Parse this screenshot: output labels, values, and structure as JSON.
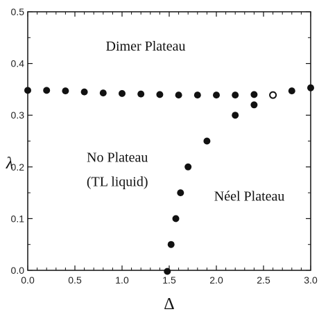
{
  "chart_data": {
    "type": "scatter",
    "xlabel": "Δ",
    "ylabel": "λ",
    "xlim": [
      0.0,
      3.0
    ],
    "ylim": [
      0.0,
      0.5
    ],
    "x_ticks": [
      "0.0",
      "0.5",
      "1.0",
      "1.5",
      "2.0",
      "2.5",
      "3.0"
    ],
    "y_ticks": [
      "0.0",
      "0.1",
      "0.2",
      "0.3",
      "0.4",
      "0.5"
    ],
    "grid": false,
    "annotations": [
      {
        "text": "Dimer Plateau",
        "x": 1.25,
        "y": 0.425
      },
      {
        "text": "No Plateau",
        "x": 0.95,
        "y": 0.21
      },
      {
        "text": "(TL liquid)",
        "x": 0.95,
        "y": 0.163
      },
      {
        "text": "Néel Plateau",
        "x": 2.35,
        "y": 0.135
      }
    ],
    "series": [
      {
        "marker": "filled",
        "color": "#111111",
        "points": [
          [
            0.0,
            0.348
          ],
          [
            0.2,
            0.348
          ],
          [
            0.4,
            0.347
          ],
          [
            0.6,
            0.345
          ],
          [
            0.8,
            0.343
          ],
          [
            1.0,
            0.342
          ],
          [
            1.2,
            0.341
          ],
          [
            1.4,
            0.34
          ],
          [
            1.6,
            0.339
          ],
          [
            1.8,
            0.339
          ],
          [
            2.0,
            0.339
          ],
          [
            2.2,
            0.339
          ],
          [
            2.4,
            0.34
          ],
          [
            2.8,
            0.347
          ],
          [
            3.0,
            0.353
          ],
          [
            1.48,
            -0.002
          ],
          [
            1.52,
            0.05
          ],
          [
            1.57,
            0.1
          ],
          [
            1.62,
            0.15
          ],
          [
            1.7,
            0.2
          ],
          [
            1.9,
            0.25
          ],
          [
            2.2,
            0.3
          ],
          [
            2.4,
            0.32
          ]
        ]
      },
      {
        "marker": "open",
        "color": "#111111",
        "points": [
          [
            2.6,
            0.339
          ]
        ]
      }
    ]
  }
}
